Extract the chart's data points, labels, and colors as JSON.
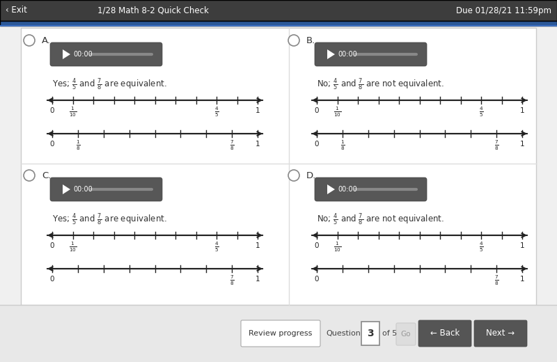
{
  "title_bar_text": "1/28 Math 8-2 Quick Check",
  "due_text": "Due 01/28/21 11:59pm",
  "exit_text": "‹ Exit",
  "bg_color": "#f0f0f0",
  "white_panel": "#ffffff",
  "title_bar_color": "#3a3a3a",
  "accent_bar_color": "#2c5898",
  "accent_line_color": "#3c6ebf",
  "player_bg": "#555555",
  "footer_bg": "#e8e8e8",
  "label_texts": [
    "Yes; $\\frac{4}{5}$ and $\\frac{7}{8}$ are equivalent.",
    "No; $\\frac{4}{5}$ and $\\frac{7}{8}$ are not equivalent.",
    "Yes; $\\frac{4}{5}$ and $\\frac{7}{8}$ are equivalent.",
    "No; $\\frac{4}{5}$ and $\\frac{7}{8}$ are not equivalent."
  ],
  "letters": [
    "A",
    "B",
    "C",
    "D"
  ],
  "footer_text": "Review progress",
  "question_num": "3",
  "of_text": "of 5",
  "go_text": "Go",
  "back_text": "← Back",
  "next_text": "Next →"
}
